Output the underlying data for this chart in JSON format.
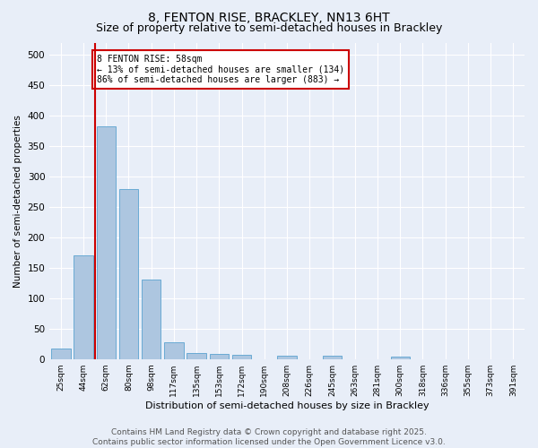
{
  "title": "8, FENTON RISE, BRACKLEY, NN13 6HT",
  "subtitle": "Size of property relative to semi-detached houses in Brackley",
  "xlabel": "Distribution of semi-detached houses by size in Brackley",
  "ylabel": "Number of semi-detached properties",
  "categories": [
    "25sqm",
    "44sqm",
    "62sqm",
    "80sqm",
    "98sqm",
    "117sqm",
    "135sqm",
    "153sqm",
    "172sqm",
    "190sqm",
    "208sqm",
    "226sqm",
    "245sqm",
    "263sqm",
    "281sqm",
    "300sqm",
    "318sqm",
    "336sqm",
    "355sqm",
    "373sqm",
    "391sqm"
  ],
  "values": [
    17,
    170,
    382,
    280,
    130,
    28,
    10,
    9,
    7,
    0,
    6,
    0,
    6,
    0,
    0,
    4,
    0,
    0,
    0,
    0,
    0
  ],
  "bar_color": "#adc6e0",
  "bar_edge_color": "#6aaad4",
  "red_line_x": 1.5,
  "annotation_title": "8 FENTON RISE: 58sqm",
  "annotation_line1": "← 13% of semi-detached houses are smaller (134)",
  "annotation_line2": "86% of semi-detached houses are larger (883) →",
  "annotation_box_color": "#ffffff",
  "annotation_box_edge": "#cc0000",
  "red_line_color": "#cc0000",
  "ylim": [
    0,
    520
  ],
  "yticks": [
    0,
    50,
    100,
    150,
    200,
    250,
    300,
    350,
    400,
    450,
    500
  ],
  "background_color": "#e8eef8",
  "grid_color": "#ffffff",
  "footer_line1": "Contains HM Land Registry data © Crown copyright and database right 2025.",
  "footer_line2": "Contains public sector information licensed under the Open Government Licence v3.0.",
  "title_fontsize": 10,
  "subtitle_fontsize": 9,
  "footer_fontsize": 6.5
}
